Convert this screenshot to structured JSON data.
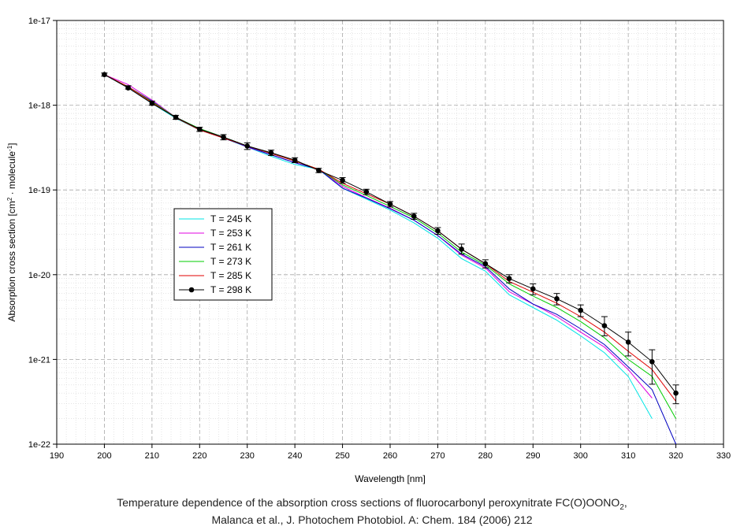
{
  "chart_data": {
    "type": "line",
    "xlabel": "Wavelength [nm]",
    "ylabel": "Absorption cross section [cm2 · molecule-1]",
    "ylabel_parts": [
      "Absorption cross section [cm",
      "2",
      " · molecule",
      "-1",
      "]"
    ],
    "xlim": [
      190,
      330
    ],
    "ylim": [
      1e-22,
      1e-17
    ],
    "yscale": "log",
    "x_ticks": [
      190,
      200,
      210,
      220,
      230,
      240,
      250,
      260,
      270,
      280,
      290,
      300,
      310,
      320,
      330
    ],
    "y_ticks": [
      {
        "value": 1e-17,
        "label": "1e-17"
      },
      {
        "value": 1e-18,
        "label": "1e-18"
      },
      {
        "value": 1e-19,
        "label": "1e-19"
      },
      {
        "value": 1e-20,
        "label": "1e-20"
      },
      {
        "value": 1e-21,
        "label": "1e-21"
      },
      {
        "value": 1e-22,
        "label": "1e-22"
      }
    ],
    "grid": true,
    "legend_position": "center-left",
    "series": [
      {
        "name": "T = 245 K",
        "color": "#00e5e5",
        "markers": false,
        "x": [
          200,
          205,
          210,
          215,
          220,
          225,
          230,
          235,
          240,
          245,
          250,
          255,
          260,
          265,
          270,
          275,
          280,
          285,
          290,
          295,
          300,
          305,
          310,
          315
        ],
        "y": [
          2.3e-18,
          1.6e-18,
          1.05e-18,
          7e-19,
          5.1e-19,
          4.1e-19,
          3.2e-19,
          2.5e-19,
          2e-19,
          1.75e-19,
          1.05e-19,
          7.8e-20,
          5.8e-20,
          4.1e-20,
          2.7e-20,
          1.55e-20,
          1.1e-20,
          5.8e-21,
          4.1e-21,
          2.9e-21,
          1.9e-21,
          1.2e-21,
          6.3e-22,
          2e-22
        ]
      },
      {
        "name": "T = 253 K",
        "color": "#e000e0",
        "markers": false,
        "x": [
          200,
          205,
          210,
          215,
          220,
          225,
          230,
          235,
          240,
          245,
          250,
          255,
          260,
          265,
          270,
          275,
          280,
          285,
          290,
          295,
          300,
          305,
          310,
          315
        ],
        "y": [
          2.3e-18,
          1.75e-18,
          1.15e-18,
          7.2e-19,
          5.3e-19,
          4.2e-19,
          3.2e-19,
          2.6e-19,
          2.1e-19,
          1.75e-19,
          1.1e-19,
          8.1e-20,
          6.1e-20,
          4.4e-20,
          2.9e-20,
          1.7e-20,
          1.2e-20,
          6.3e-21,
          4.5e-21,
          3.2e-21,
          2.1e-21,
          1.4e-21,
          7.6e-22,
          3.5e-22
        ]
      },
      {
        "name": "T = 261 K",
        "color": "#0000c0",
        "markers": false,
        "x": [
          200,
          205,
          210,
          215,
          220,
          225,
          230,
          235,
          240,
          245,
          250,
          255,
          260,
          265,
          270,
          275,
          280,
          285,
          290,
          295,
          300,
          305,
          310,
          315,
          320
        ],
        "y": [
          2.3e-18,
          1.65e-18,
          1.12e-18,
          7.1e-19,
          5.2e-19,
          4.1e-19,
          3.25e-19,
          2.6e-19,
          2.1e-19,
          1.75e-19,
          1.05e-19,
          8e-20,
          6e-20,
          4.4e-20,
          2.9e-20,
          1.75e-20,
          1.25e-20,
          6.8e-21,
          4.5e-21,
          3.4e-21,
          2.3e-21,
          1.5e-21,
          8.2e-22,
          4.4e-22,
          1e-22
        ]
      },
      {
        "name": "T = 273 K",
        "color": "#00cc00",
        "markers": false,
        "x": [
          200,
          205,
          210,
          215,
          220,
          225,
          230,
          235,
          240,
          245,
          250,
          255,
          260,
          265,
          270,
          275,
          280,
          285,
          290,
          295,
          300,
          305,
          310,
          315,
          320
        ],
        "y": [
          2.3e-18,
          1.65e-18,
          1.1e-18,
          7.2e-19,
          5.3e-19,
          4.2e-19,
          3.3e-19,
          2.7e-19,
          2.2e-19,
          1.75e-19,
          1.15e-19,
          8.6e-20,
          6.4e-20,
          4.7e-20,
          3.1e-20,
          1.85e-20,
          1.3e-20,
          7.8e-21,
          5.6e-21,
          4.1e-21,
          2.8e-21,
          1.8e-21,
          1e-21,
          6.3e-22,
          2e-22
        ]
      },
      {
        "name": "T = 285 K",
        "color": "#e00000",
        "markers": false,
        "x": [
          200,
          205,
          210,
          215,
          220,
          225,
          230,
          235,
          240,
          245,
          250,
          255,
          260,
          265,
          270,
          275,
          280,
          285,
          290,
          295,
          300,
          305,
          310,
          315,
          320
        ],
        "y": [
          2.3e-18,
          1.65e-18,
          1.08e-18,
          7.1e-19,
          5.1e-19,
          4.1e-19,
          3.3e-19,
          2.7e-19,
          2.2e-19,
          1.75e-19,
          1.2e-19,
          9e-20,
          6.8e-20,
          4.9e-20,
          3.3e-20,
          2e-20,
          1.35e-20,
          8.3e-21,
          6.2e-21,
          4.6e-21,
          3.2e-21,
          2.1e-21,
          1.25e-21,
          7.6e-22,
          3.2e-22
        ]
      },
      {
        "name": "T = 298 K",
        "color": "#000000",
        "markers": true,
        "x": [
          200,
          205,
          210,
          215,
          220,
          225,
          230,
          235,
          240,
          245,
          250,
          255,
          260,
          265,
          270,
          275,
          280,
          285,
          290,
          295,
          300,
          305,
          310,
          315,
          320
        ],
        "y": [
          2.3e-18,
          1.6e-18,
          1.05e-18,
          7.2e-19,
          5.2e-19,
          4.2e-19,
          3.3e-19,
          2.75e-19,
          2.25e-19,
          1.7e-19,
          1.3e-19,
          9.5e-20,
          6.8e-20,
          4.9e-20,
          3.3e-20,
          2e-20,
          1.35e-20,
          9e-21,
          6.8e-21,
          5.2e-21,
          3.8e-21,
          2.5e-21,
          1.6e-21,
          9.4e-22,
          4e-22
        ],
        "err_low": [
          2.2e-18,
          1.55e-18,
          1e-18,
          6.8e-19,
          4.9e-19,
          3.9e-19,
          3e-19,
          2.55e-19,
          2.1e-19,
          1.6e-19,
          1.2e-19,
          8.8e-20,
          6.3e-20,
          4.5e-20,
          3e-20,
          1.75e-20,
          1.2e-20,
          8e-21,
          5.8e-21,
          4.4e-21,
          3.2e-21,
          1.9e-21,
          1.1e-21,
          5.1e-22,
          3e-22
        ],
        "err_high": [
          2.4e-18,
          1.7e-18,
          1.12e-18,
          7.6e-19,
          5.5e-19,
          4.5e-19,
          3.6e-19,
          2.95e-19,
          2.4e-19,
          1.8e-19,
          1.4e-19,
          1.02e-19,
          7.3e-20,
          5.3e-20,
          3.6e-20,
          2.3e-20,
          1.5e-20,
          1e-20,
          7.8e-21,
          6e-21,
          4.4e-21,
          3.2e-21,
          2.1e-21,
          1.3e-21,
          5e-22
        ]
      }
    ]
  },
  "caption": {
    "line1_main": "Temperature dependence of the absorption cross sections of fluorocarbonyl peroxynitrate FC(O)OONO",
    "line1_sub": "2",
    "line1_end": ",",
    "line2": "Malanca et al., J. Photochem Photobiol. A: Chem. 184 (2006) 212"
  }
}
